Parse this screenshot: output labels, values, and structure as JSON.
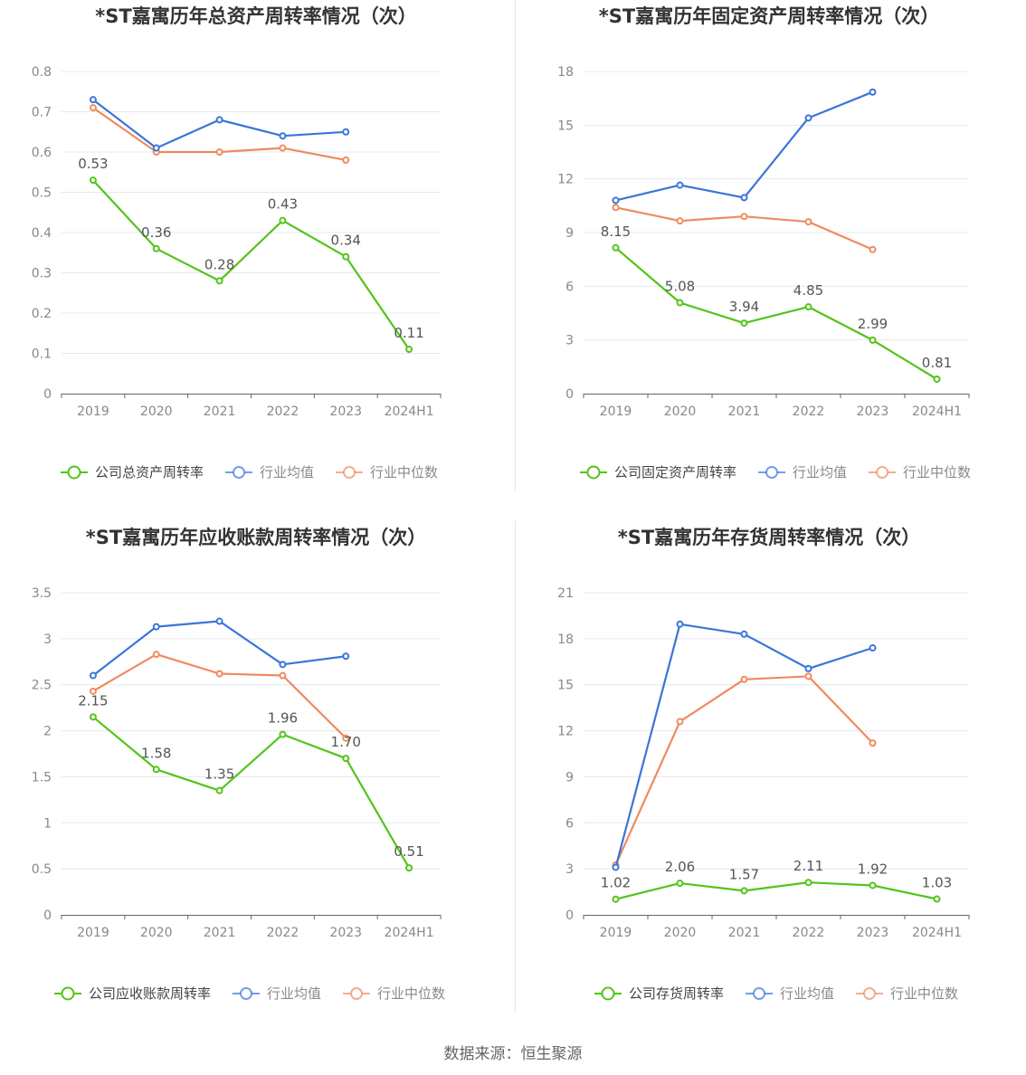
{
  "footer": {
    "source": "数据来源：恒生聚源"
  },
  "legend": {
    "avg": "行业均值",
    "median": "行业中位数"
  },
  "colors": {
    "company": "#52c41a",
    "avg": "#3a75d8",
    "median": "#ef8a5f",
    "grid": "#e6e8ef",
    "axis": "#666666",
    "label": "#555555",
    "title": "#333333"
  },
  "chart_data": [
    {
      "type": "line",
      "title": "*ST嘉寓历年总资产周转率情况（次）",
      "categories": [
        "2019",
        "2020",
        "2021",
        "2022",
        "2023",
        "2024H1"
      ],
      "ylim": [
        0,
        0.8
      ],
      "yticks": [
        "0",
        "0.1",
        "0.2",
        "0.3",
        "0.4",
        "0.5",
        "0.6",
        "0.7",
        "0.8"
      ],
      "series": [
        {
          "name": "公司总资产周转率",
          "role": "company",
          "values": [
            0.53,
            0.36,
            0.28,
            0.43,
            0.34,
            0.11
          ],
          "labels": [
            "0.53",
            "0.36",
            "0.28",
            "0.43",
            "0.34",
            "0.11"
          ]
        },
        {
          "name": "行业均值",
          "role": "avg",
          "values": [
            0.73,
            0.61,
            0.68,
            0.64,
            0.65,
            null
          ]
        },
        {
          "name": "行业中位数",
          "role": "median",
          "values": [
            0.71,
            0.6,
            0.6,
            0.61,
            0.58,
            null
          ]
        }
      ]
    },
    {
      "type": "line",
      "title": "*ST嘉寓历年固定资产周转率情况（次）",
      "categories": [
        "2019",
        "2020",
        "2021",
        "2022",
        "2023",
        "2024H1"
      ],
      "ylim": [
        0,
        18
      ],
      "yticks": [
        "0",
        "3",
        "6",
        "9",
        "12",
        "15",
        "18"
      ],
      "series": [
        {
          "name": "公司固定资产周转率",
          "role": "company",
          "values": [
            8.15,
            5.08,
            3.94,
            4.85,
            2.99,
            0.81
          ],
          "labels": [
            "8.15",
            "5.08",
            "3.94",
            "4.85",
            "2.99",
            "0.81"
          ]
        },
        {
          "name": "行业均值",
          "role": "avg",
          "values": [
            10.8,
            11.65,
            10.95,
            15.4,
            16.85,
            null
          ]
        },
        {
          "name": "行业中位数",
          "role": "median",
          "values": [
            10.4,
            9.65,
            9.9,
            9.6,
            8.05,
            null
          ]
        }
      ]
    },
    {
      "type": "line",
      "title": "*ST嘉寓历年应收账款周转率情况（次）",
      "categories": [
        "2019",
        "2020",
        "2021",
        "2022",
        "2023",
        "2024H1"
      ],
      "ylim": [
        0,
        3.5
      ],
      "yticks": [
        "0",
        "0.5",
        "1",
        "1.5",
        "2",
        "2.5",
        "3",
        "3.5"
      ],
      "series": [
        {
          "name": "公司应收账款周转率",
          "role": "company",
          "values": [
            2.15,
            1.58,
            1.35,
            1.96,
            1.7,
            0.51
          ],
          "labels": [
            "2.15",
            "1.58",
            "1.35",
            "1.96",
            "1.70",
            "0.51"
          ]
        },
        {
          "name": "行业均值",
          "role": "avg",
          "values": [
            2.6,
            3.13,
            3.19,
            2.72,
            2.81,
            null
          ]
        },
        {
          "name": "行业中位数",
          "role": "median",
          "values": [
            2.43,
            2.83,
            2.62,
            2.6,
            1.92,
            null
          ]
        }
      ]
    },
    {
      "type": "line",
      "title": "*ST嘉寓历年存货周转率情况（次）",
      "categories": [
        "2019",
        "2020",
        "2021",
        "2022",
        "2023",
        "2024H1"
      ],
      "ylim": [
        0,
        21
      ],
      "yticks": [
        "0",
        "3",
        "6",
        "9",
        "12",
        "15",
        "18",
        "21"
      ],
      "series": [
        {
          "name": "公司存货周转率",
          "role": "company",
          "values": [
            1.02,
            2.06,
            1.57,
            2.11,
            1.92,
            1.03
          ],
          "labels": [
            "1.02",
            "2.06",
            "1.57",
            "2.11",
            "1.92",
            "1.03"
          ]
        },
        {
          "name": "行业均值",
          "role": "avg",
          "values": [
            3.1,
            18.95,
            18.3,
            16.05,
            17.4,
            null
          ]
        },
        {
          "name": "行业中位数",
          "role": "median",
          "values": [
            3.25,
            12.6,
            15.35,
            15.55,
            11.2,
            null
          ]
        }
      ]
    }
  ]
}
